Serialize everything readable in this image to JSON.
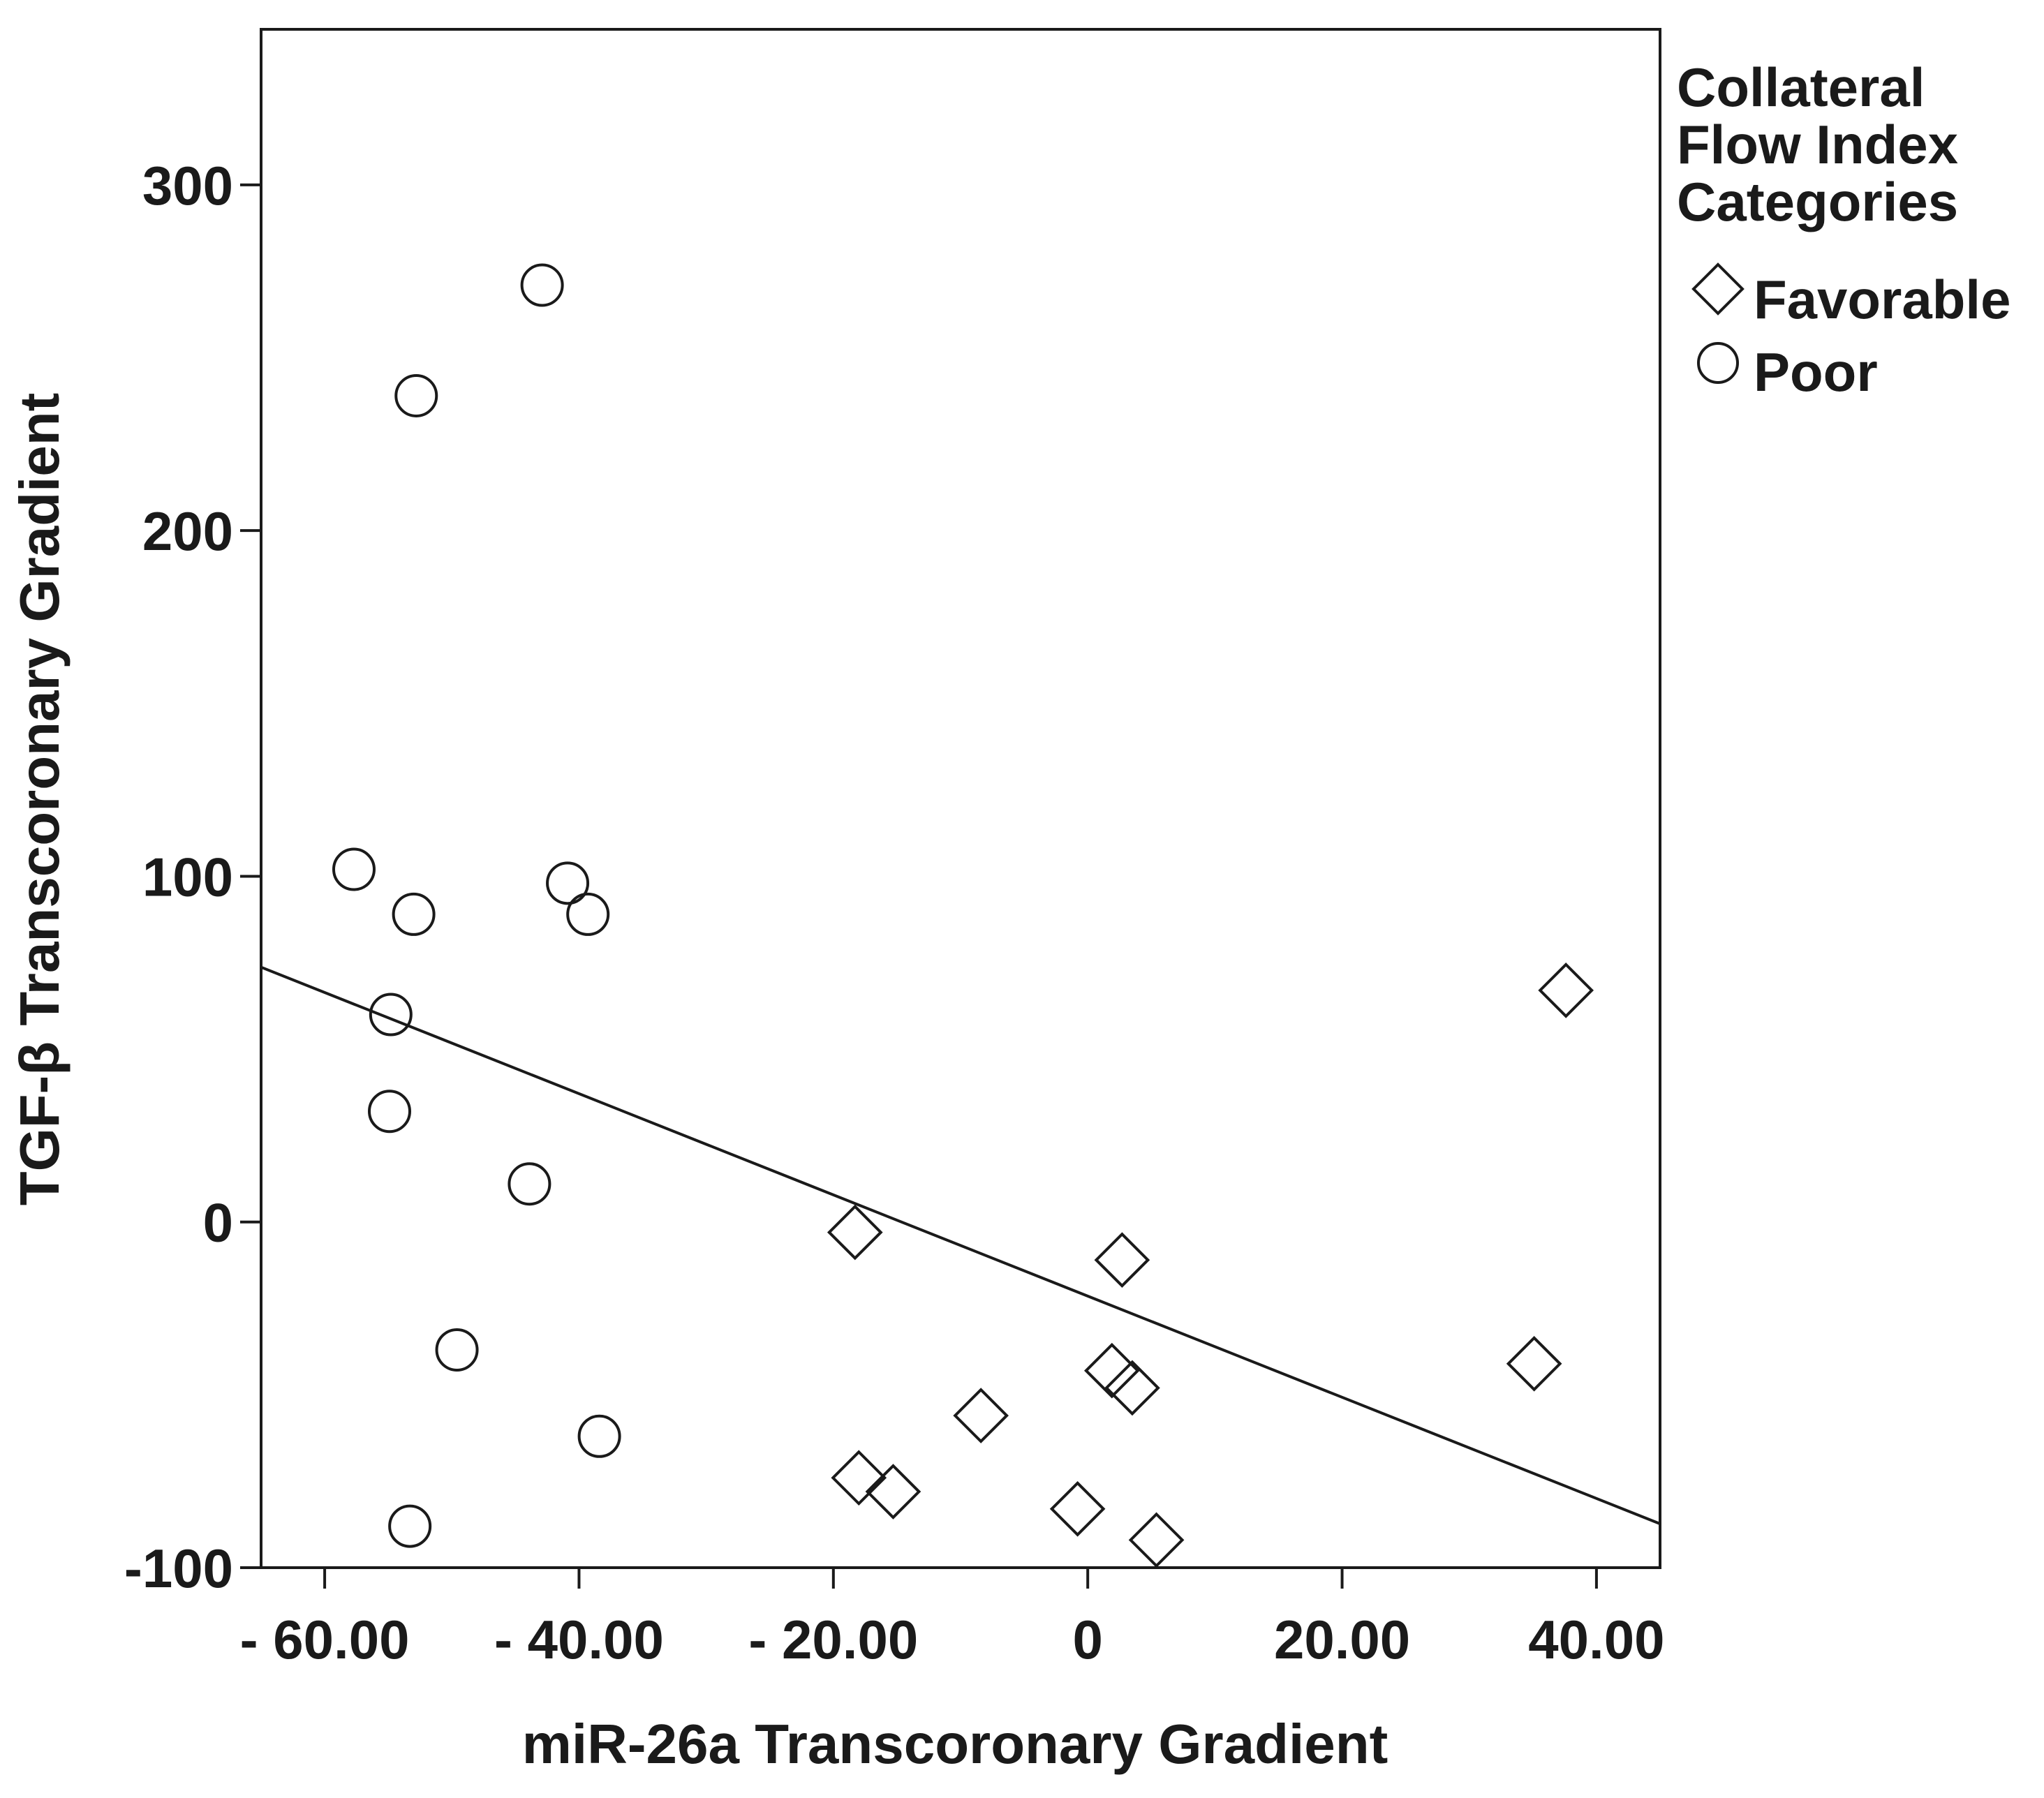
{
  "chart_data": {
    "type": "scatter",
    "title": "",
    "xlabel": "miR-26a Transcoronary Gradient",
    "ylabel": "TGF-β Transcoronary Gradient",
    "xlim": [
      -65,
      45
    ],
    "ylim": [
      -100,
      345
    ],
    "x_ticks": [
      -60,
      -40,
      -20,
      0,
      20,
      40
    ],
    "x_tick_labels": [
      "- 60.00",
      "- 40.00",
      "- 20.00",
      "0",
      "20.00",
      "40.00"
    ],
    "y_ticks": [
      -100,
      0,
      100,
      200,
      300
    ],
    "y_tick_labels": [
      "-100",
      "0",
      "100",
      "200",
      "300"
    ],
    "legend": {
      "title_lines": [
        "Collateral",
        "Flow Index",
        "Categories"
      ],
      "position": "right-outside-top"
    },
    "series": [
      {
        "name": "Favorable",
        "marker": "diamond",
        "points": [
          {
            "x": -18.3,
            "y": -3
          },
          {
            "x": -18,
            "y": -74
          },
          {
            "x": -15.3,
            "y": -78
          },
          {
            "x": -8.4,
            "y": -56
          },
          {
            "x": -0.8,
            "y": -83
          },
          {
            "x": 1.9,
            "y": -43
          },
          {
            "x": 2.7,
            "y": -11
          },
          {
            "x": 3.5,
            "y": -48
          },
          {
            "x": 5.4,
            "y": -92
          },
          {
            "x": 35.1,
            "y": -41
          },
          {
            "x": 37.6,
            "y": 67
          }
        ]
      },
      {
        "name": "Poor",
        "marker": "circle",
        "points": [
          {
            "x": -42.9,
            "y": 271
          },
          {
            "x": -52.8,
            "y": 239
          },
          {
            "x": -57.7,
            "y": 102
          },
          {
            "x": -53,
            "y": 89
          },
          {
            "x": -40.9,
            "y": 98
          },
          {
            "x": -39.3,
            "y": 89
          },
          {
            "x": -54.8,
            "y": 60
          },
          {
            "x": -54.9,
            "y": 32
          },
          {
            "x": -43.9,
            "y": 11
          },
          {
            "x": -49.6,
            "y": -37
          },
          {
            "x": -38.4,
            "y": -62
          },
          {
            "x": -53.3,
            "y": -88
          }
        ]
      }
    ],
    "fit_line": {
      "x": [
        -65,
        45
      ],
      "y": [
        73.7,
        -87.3
      ]
    }
  }
}
